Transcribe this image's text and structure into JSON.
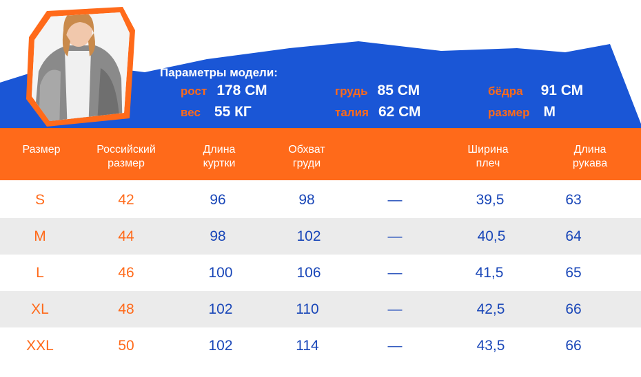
{
  "model": {
    "title": "Параметры модели:",
    "params": [
      {
        "key": "рост",
        "value": "178 СМ"
      },
      {
        "key": "вес",
        "value": "55 КГ"
      },
      {
        "key": "грудь",
        "value": "85 СМ"
      },
      {
        "key": "талия",
        "value": "62 СМ"
      },
      {
        "key": "бёдра",
        "value": "91 СМ"
      },
      {
        "key": "размер",
        "value": "M"
      }
    ]
  },
  "table": {
    "headers": [
      "Размер",
      "Российский размер",
      "Длина куртки",
      "Обхват груди",
      "",
      "Ширина плеч",
      "Длина рукава"
    ],
    "rows": [
      {
        "size": "S",
        "ru": "42",
        "length": "96",
        "chest": "98",
        "dash": "—",
        "shoulder": "39,5",
        "sleeve": "63"
      },
      {
        "size": "M",
        "ru": "44",
        "length": "98",
        "chest": "102",
        "dash": "—",
        "shoulder": "40,5",
        "sleeve": "64"
      },
      {
        "size": "L",
        "ru": "46",
        "length": "100",
        "chest": "106",
        "dash": "—",
        "shoulder": "41,5",
        "sleeve": "65"
      },
      {
        "size": "XL",
        "ru": "48",
        "length": "102",
        "chest": "110",
        "dash": "—",
        "shoulder": "42,5",
        "sleeve": "66"
      },
      {
        "size": "XXL",
        "ru": "50",
        "length": "102",
        "chest": "114",
        "dash": "—",
        "shoulder": "43,5",
        "sleeve": "66"
      }
    ]
  },
  "colors": {
    "brand_blue": "#1a56d6",
    "brand_orange": "#ff6a1a",
    "row_alt": "#ebebeb"
  }
}
